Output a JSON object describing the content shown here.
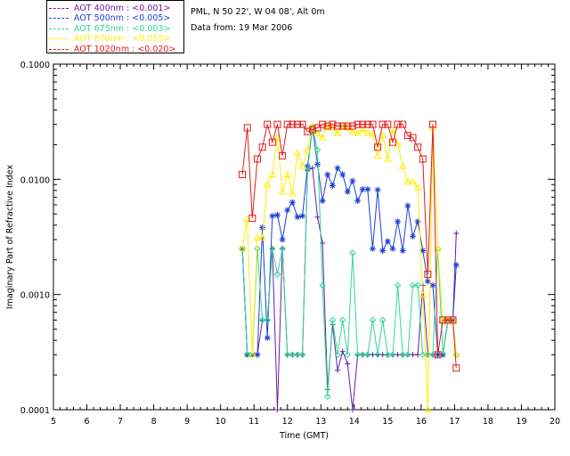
{
  "header": {
    "location": "PML, N 50 22', W 04 08', Alt 0m",
    "date_line": "Data from: 19 Mar 2006"
  },
  "legend": [
    {
      "label": "AOT  400nm : <0.001>",
      "color": "#6a1e9c"
    },
    {
      "label": "AOT  500nm : <0.005>",
      "color": "#1f3fd6"
    },
    {
      "label": "AOT  675nm : <0.003>",
      "color": "#2fd69a"
    },
    {
      "label": "AOT  870nm : <0.015>",
      "color": "#ffee00"
    },
    {
      "label": "AOT 1020nm : <0.020>",
      "color": "#e41a1a"
    }
  ],
  "chart_data": {
    "type": "line",
    "xlabel": "Time (GMT)",
    "ylabel": "Imaginary Part of Refractive Index",
    "xlim": [
      5,
      20
    ],
    "ylim": [
      0.0001,
      0.1
    ],
    "yscale": "log",
    "xticks": [
      "5",
      "6",
      "7",
      "8",
      "9",
      "10",
      "11",
      "12",
      "13",
      "14",
      "15",
      "16",
      "17",
      "18",
      "19",
      "20"
    ],
    "yticks": [
      {
        "value": 0.0001,
        "label": "0.0001"
      },
      {
        "value": 0.001,
        "label": "0.0010"
      },
      {
        "value": 0.01,
        "label": "0.0100"
      },
      {
        "value": 0.1,
        "label": "0.1000"
      }
    ],
    "series": [
      {
        "name": "AOT  400nm : <0.001>",
        "color": "#6a1e9c",
        "marker": "plus",
        "x": [
          10.65,
          10.8,
          10.95,
          11.1,
          11.25,
          11.4,
          11.55,
          11.7,
          11.85,
          12.0,
          12.15,
          12.3,
          12.45,
          12.6,
          12.75,
          12.9,
          13.05,
          13.2,
          13.35,
          13.5,
          13.65,
          13.8,
          13.95,
          14.1,
          14.25,
          14.4,
          14.55,
          14.7,
          14.85,
          15.0,
          15.15,
          15.3,
          15.45,
          15.6,
          15.75,
          15.9,
          16.05,
          16.2,
          16.35,
          16.5,
          16.65,
          16.8,
          16.95,
          17.05
        ],
        "y": [
          0.0025,
          0.0003,
          0.0003,
          0.0003,
          0.0006,
          0.0006,
          0.0025,
          0.0001,
          0.0025,
          0.0003,
          0.0003,
          0.0003,
          0.0003,
          0.012,
          0.0125,
          0.0047,
          0.0028,
          0.00015,
          0.00055,
          0.00022,
          0.00032,
          0.00025,
          0.0001,
          0.0003,
          0.0003,
          0.0003,
          0.0003,
          0.0003,
          0.0003,
          0.0003,
          0.0003,
          0.0003,
          0.0003,
          0.0003,
          0.0003,
          0.0003,
          0.0012,
          0.0003,
          0.0003,
          0.0003,
          0.0003,
          0.0006,
          0.0006,
          0.0034
        ]
      },
      {
        "name": "AOT  500nm : <0.005>",
        "color": "#1f3fd6",
        "marker": "asterisk",
        "x": [
          10.65,
          10.8,
          10.95,
          11.1,
          11.25,
          11.4,
          11.55,
          11.7,
          11.85,
          12.0,
          12.15,
          12.3,
          12.45,
          12.6,
          12.75,
          12.9,
          13.05,
          13.2,
          13.35,
          13.5,
          13.65,
          13.8,
          13.95,
          14.1,
          14.25,
          14.4,
          14.55,
          14.7,
          14.85,
          15.0,
          15.15,
          15.3,
          15.45,
          15.6,
          15.75,
          15.9,
          16.05,
          16.2,
          16.35,
          16.5,
          16.65,
          16.8,
          16.95,
          17.05
        ],
        "y": [
          0.0025,
          0.0003,
          0.0003,
          0.0003,
          0.0038,
          0.00042,
          0.0048,
          0.0049,
          0.003,
          0.0054,
          0.0063,
          0.0047,
          0.0048,
          0.013,
          0.028,
          0.0135,
          0.0065,
          0.011,
          0.0088,
          0.0125,
          0.011,
          0.0078,
          0.0097,
          0.0065,
          0.0082,
          0.0082,
          0.0025,
          0.0081,
          0.0024,
          0.0029,
          0.0025,
          0.0043,
          0.0024,
          0.0059,
          0.0032,
          0.0043,
          0.0024,
          0.0013,
          0.0012,
          0.0003,
          0.0003,
          0.0006,
          0.0006,
          0.0018
        ]
      },
      {
        "name": "AOT  675nm : <0.003>",
        "color": "#2fd69a",
        "marker": "diamond",
        "x": [
          10.65,
          10.8,
          10.95,
          11.1,
          11.25,
          11.4,
          11.55,
          11.7,
          11.85,
          12.0,
          12.15,
          12.3,
          12.45,
          12.6,
          12.75,
          12.9,
          13.05,
          13.2,
          13.35,
          13.5,
          13.65,
          13.8,
          13.95,
          14.1,
          14.25,
          14.4,
          14.55,
          14.7,
          14.85,
          15.0,
          15.15,
          15.3,
          15.45,
          15.6,
          15.75,
          15.9,
          16.05,
          16.2,
          16.35,
          16.5,
          16.65,
          16.8,
          16.95,
          17.05
        ],
        "y": [
          0.0025,
          0.0003,
          0.0003,
          0.0025,
          0.0006,
          0.0006,
          0.0025,
          0.0015,
          0.0025,
          0.0003,
          0.0003,
          0.0003,
          0.0003,
          0.012,
          0.028,
          0.018,
          0.0012,
          0.00013,
          0.0006,
          0.0003,
          0.0006,
          0.0003,
          0.0023,
          0.0003,
          0.0003,
          0.0003,
          0.0006,
          0.0003,
          0.0006,
          0.0003,
          0.0003,
          0.0012,
          0.0003,
          0.0003,
          0.0012,
          0.0012,
          0.0003,
          0.0003,
          0.0003,
          0.0025,
          0.0003,
          0.0006,
          0.0006,
          0.0003
        ]
      },
      {
        "name": "AOT  870nm : <0.015>",
        "color": "#ffee00",
        "marker": "triangle",
        "x": [
          10.65,
          10.8,
          10.95,
          11.1,
          11.25,
          11.4,
          11.55,
          11.7,
          11.85,
          12.0,
          12.15,
          12.3,
          12.45,
          12.6,
          12.75,
          12.9,
          13.05,
          13.2,
          13.35,
          13.5,
          13.65,
          13.8,
          13.95,
          14.1,
          14.25,
          14.4,
          14.55,
          14.7,
          14.85,
          15.0,
          15.15,
          15.3,
          15.45,
          15.6,
          15.75,
          15.9,
          16.05,
          16.2,
          16.35,
          16.5,
          16.65,
          16.8,
          16.95,
          17.05
        ],
        "y": [
          0.0025,
          0.0045,
          0.0003,
          0.0031,
          0.0031,
          0.009,
          0.011,
          0.023,
          0.0078,
          0.011,
          0.0075,
          0.017,
          0.013,
          0.018,
          0.029,
          0.025,
          0.023,
          0.029,
          0.028,
          0.025,
          0.029,
          0.028,
          0.026,
          0.025,
          0.027,
          0.025,
          0.025,
          0.016,
          0.024,
          0.015,
          0.027,
          0.02,
          0.013,
          0.0095,
          0.0095,
          0.0085,
          0.001,
          0.0001,
          0.028,
          0.0025,
          0.0006,
          0.0006,
          0.0006,
          0.0003
        ]
      },
      {
        "name": "AOT 1020nm : <0.020>",
        "color": "#e41a1a",
        "marker": "square",
        "x": [
          10.65,
          10.8,
          10.95,
          11.1,
          11.25,
          11.4,
          11.55,
          11.7,
          11.85,
          12.0,
          12.15,
          12.3,
          12.45,
          12.6,
          12.75,
          12.9,
          13.05,
          13.2,
          13.35,
          13.5,
          13.65,
          13.8,
          13.95,
          14.1,
          14.25,
          14.4,
          14.55,
          14.7,
          14.85,
          15.0,
          15.15,
          15.3,
          15.45,
          15.6,
          15.75,
          15.9,
          16.05,
          16.2,
          16.35,
          16.5,
          16.65,
          16.8,
          16.95,
          17.05
        ],
        "y": [
          0.011,
          0.028,
          0.0046,
          0.015,
          0.019,
          0.03,
          0.021,
          0.03,
          0.016,
          0.03,
          0.03,
          0.03,
          0.03,
          0.026,
          0.027,
          0.028,
          0.03,
          0.029,
          0.03,
          0.029,
          0.029,
          0.029,
          0.029,
          0.03,
          0.03,
          0.03,
          0.03,
          0.019,
          0.03,
          0.03,
          0.021,
          0.03,
          0.03,
          0.024,
          0.023,
          0.019,
          0.015,
          0.0015,
          0.03,
          0.0003,
          0.0006,
          0.0006,
          0.0006,
          0.00023
        ]
      }
    ]
  }
}
